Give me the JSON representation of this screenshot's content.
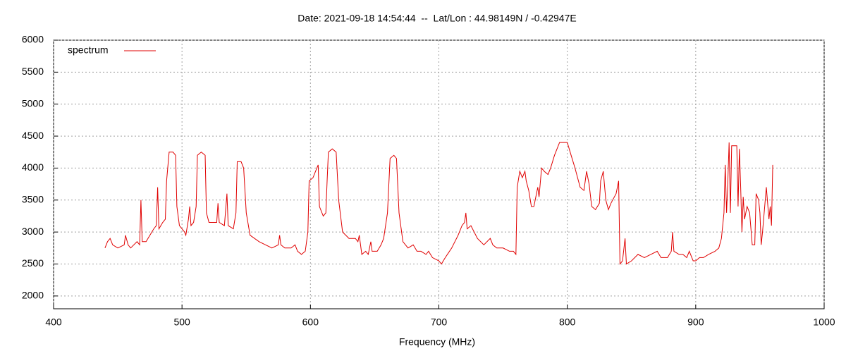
{
  "chart_data": {
    "type": "line",
    "title": "Date: 2021-09-18 14:54:44  --  Lat/Lon : 44.98149N / -0.42947E",
    "xlabel": "Frequency (MHz)",
    "xlim": [
      400,
      1000
    ],
    "xticks": [
      400,
      500,
      600,
      700,
      800,
      900,
      1000
    ],
    "ylim": [
      1800,
      6000
    ],
    "yticks": [
      2000,
      2500,
      3000,
      3500,
      4000,
      4500,
      5000,
      5500,
      6000
    ],
    "grid": true,
    "legend": "top-left",
    "series": [
      {
        "name": "spectrum",
        "color": "#e00000",
        "x": [
          440,
          442,
          444,
          446,
          450,
          455,
          456,
          458,
          460,
          465,
          467,
          468,
          469,
          472,
          475,
          478,
          480,
          481,
          482,
          485,
          487,
          488,
          490,
          493,
          495,
          496,
          498,
          502,
          503,
          505,
          506,
          507,
          509,
          511,
          512,
          515,
          518,
          519,
          521,
          525,
          527,
          528,
          529,
          533,
          535,
          536,
          540,
          542,
          543,
          546,
          548,
          550,
          553,
          560,
          565,
          570,
          575,
          576,
          577,
          580,
          585,
          588,
          590,
          593,
          596,
          598,
          599,
          602,
          605,
          606,
          607,
          610,
          612,
          613,
          614,
          617,
          620,
          622,
          625,
          630,
          635,
          637,
          638,
          640,
          643,
          645,
          647,
          648,
          652,
          655,
          657,
          660,
          662,
          665,
          667,
          669,
          672,
          676,
          680,
          683,
          686,
          690,
          692,
          695,
          700,
          702,
          705,
          710,
          715,
          718,
          720,
          721,
          722,
          725,
          730,
          735,
          740,
          742,
          745,
          750,
          755,
          758,
          760,
          761,
          763,
          765,
          767,
          768,
          770,
          772,
          774,
          777,
          778,
          780,
          782,
          785,
          787,
          790,
          794,
          800,
          803,
          806,
          810,
          813,
          815,
          817,
          819,
          822,
          825,
          826,
          828,
          830,
          832,
          834,
          838,
          840,
          841,
          843,
          845,
          846,
          850,
          855,
          860,
          865,
          870,
          873,
          878,
          881,
          882,
          883,
          887,
          890,
          893,
          895,
          898,
          900,
          903,
          906,
          910,
          915,
          918,
          920,
          922,
          923,
          924,
          925,
          926,
          927,
          928,
          930,
          932,
          933,
          934,
          935,
          936,
          937,
          938,
          940,
          942,
          944,
          946,
          947,
          949,
          950,
          951,
          952,
          955,
          957,
          958,
          959,
          960
        ],
        "values": [
          2750,
          2850,
          2900,
          2800,
          2750,
          2800,
          2950,
          2800,
          2750,
          2850,
          2800,
          3500,
          2850,
          2850,
          2950,
          3050,
          3100,
          3700,
          3050,
          3150,
          3200,
          3800,
          4250,
          4250,
          4200,
          3400,
          3100,
          3000,
          2950,
          3200,
          3400,
          3100,
          3150,
          3400,
          4200,
          4250,
          4200,
          3300,
          3150,
          3150,
          3150,
          3450,
          3150,
          3100,
          3600,
          3100,
          3050,
          3300,
          4100,
          4100,
          4000,
          3300,
          2950,
          2850,
          2800,
          2750,
          2800,
          2950,
          2800,
          2750,
          2750,
          2800,
          2700,
          2650,
          2700,
          3000,
          3800,
          3850,
          4000,
          4050,
          3400,
          3250,
          3300,
          3800,
          4250,
          4300,
          4250,
          3500,
          3000,
          2900,
          2900,
          2850,
          2950,
          2650,
          2700,
          2650,
          2850,
          2700,
          2700,
          2800,
          2900,
          3300,
          4150,
          4200,
          4150,
          3300,
          2850,
          2750,
          2800,
          2700,
          2700,
          2650,
          2700,
          2600,
          2550,
          2500,
          2600,
          2750,
          2950,
          3100,
          3150,
          3300,
          3050,
          3100,
          2900,
          2800,
          2900,
          2800,
          2750,
          2750,
          2700,
          2700,
          2650,
          3700,
          3950,
          3850,
          3950,
          3800,
          3650,
          3400,
          3400,
          3700,
          3550,
          4000,
          3950,
          3900,
          4000,
          4200,
          4400,
          4400,
          4200,
          4000,
          3700,
          3650,
          3950,
          3750,
          3400,
          3350,
          3450,
          3800,
          3950,
          3500,
          3350,
          3450,
          3600,
          3800,
          2500,
          2550,
          2900,
          2500,
          2550,
          2650,
          2600,
          2650,
          2700,
          2600,
          2600,
          2700,
          3000,
          2700,
          2650,
          2650,
          2600,
          2700,
          2550,
          2550,
          2600,
          2600,
          2650,
          2700,
          2750,
          2900,
          3300,
          4050,
          3300,
          3800,
          4400,
          3300,
          4350,
          4350,
          4350,
          3400,
          4300,
          3700,
          3000,
          3550,
          3200,
          3400,
          3300,
          2800,
          2800,
          3600,
          3500,
          3300,
          2800,
          3000,
          3700,
          3200,
          3400,
          3100,
          4050
        ]
      }
    ]
  }
}
